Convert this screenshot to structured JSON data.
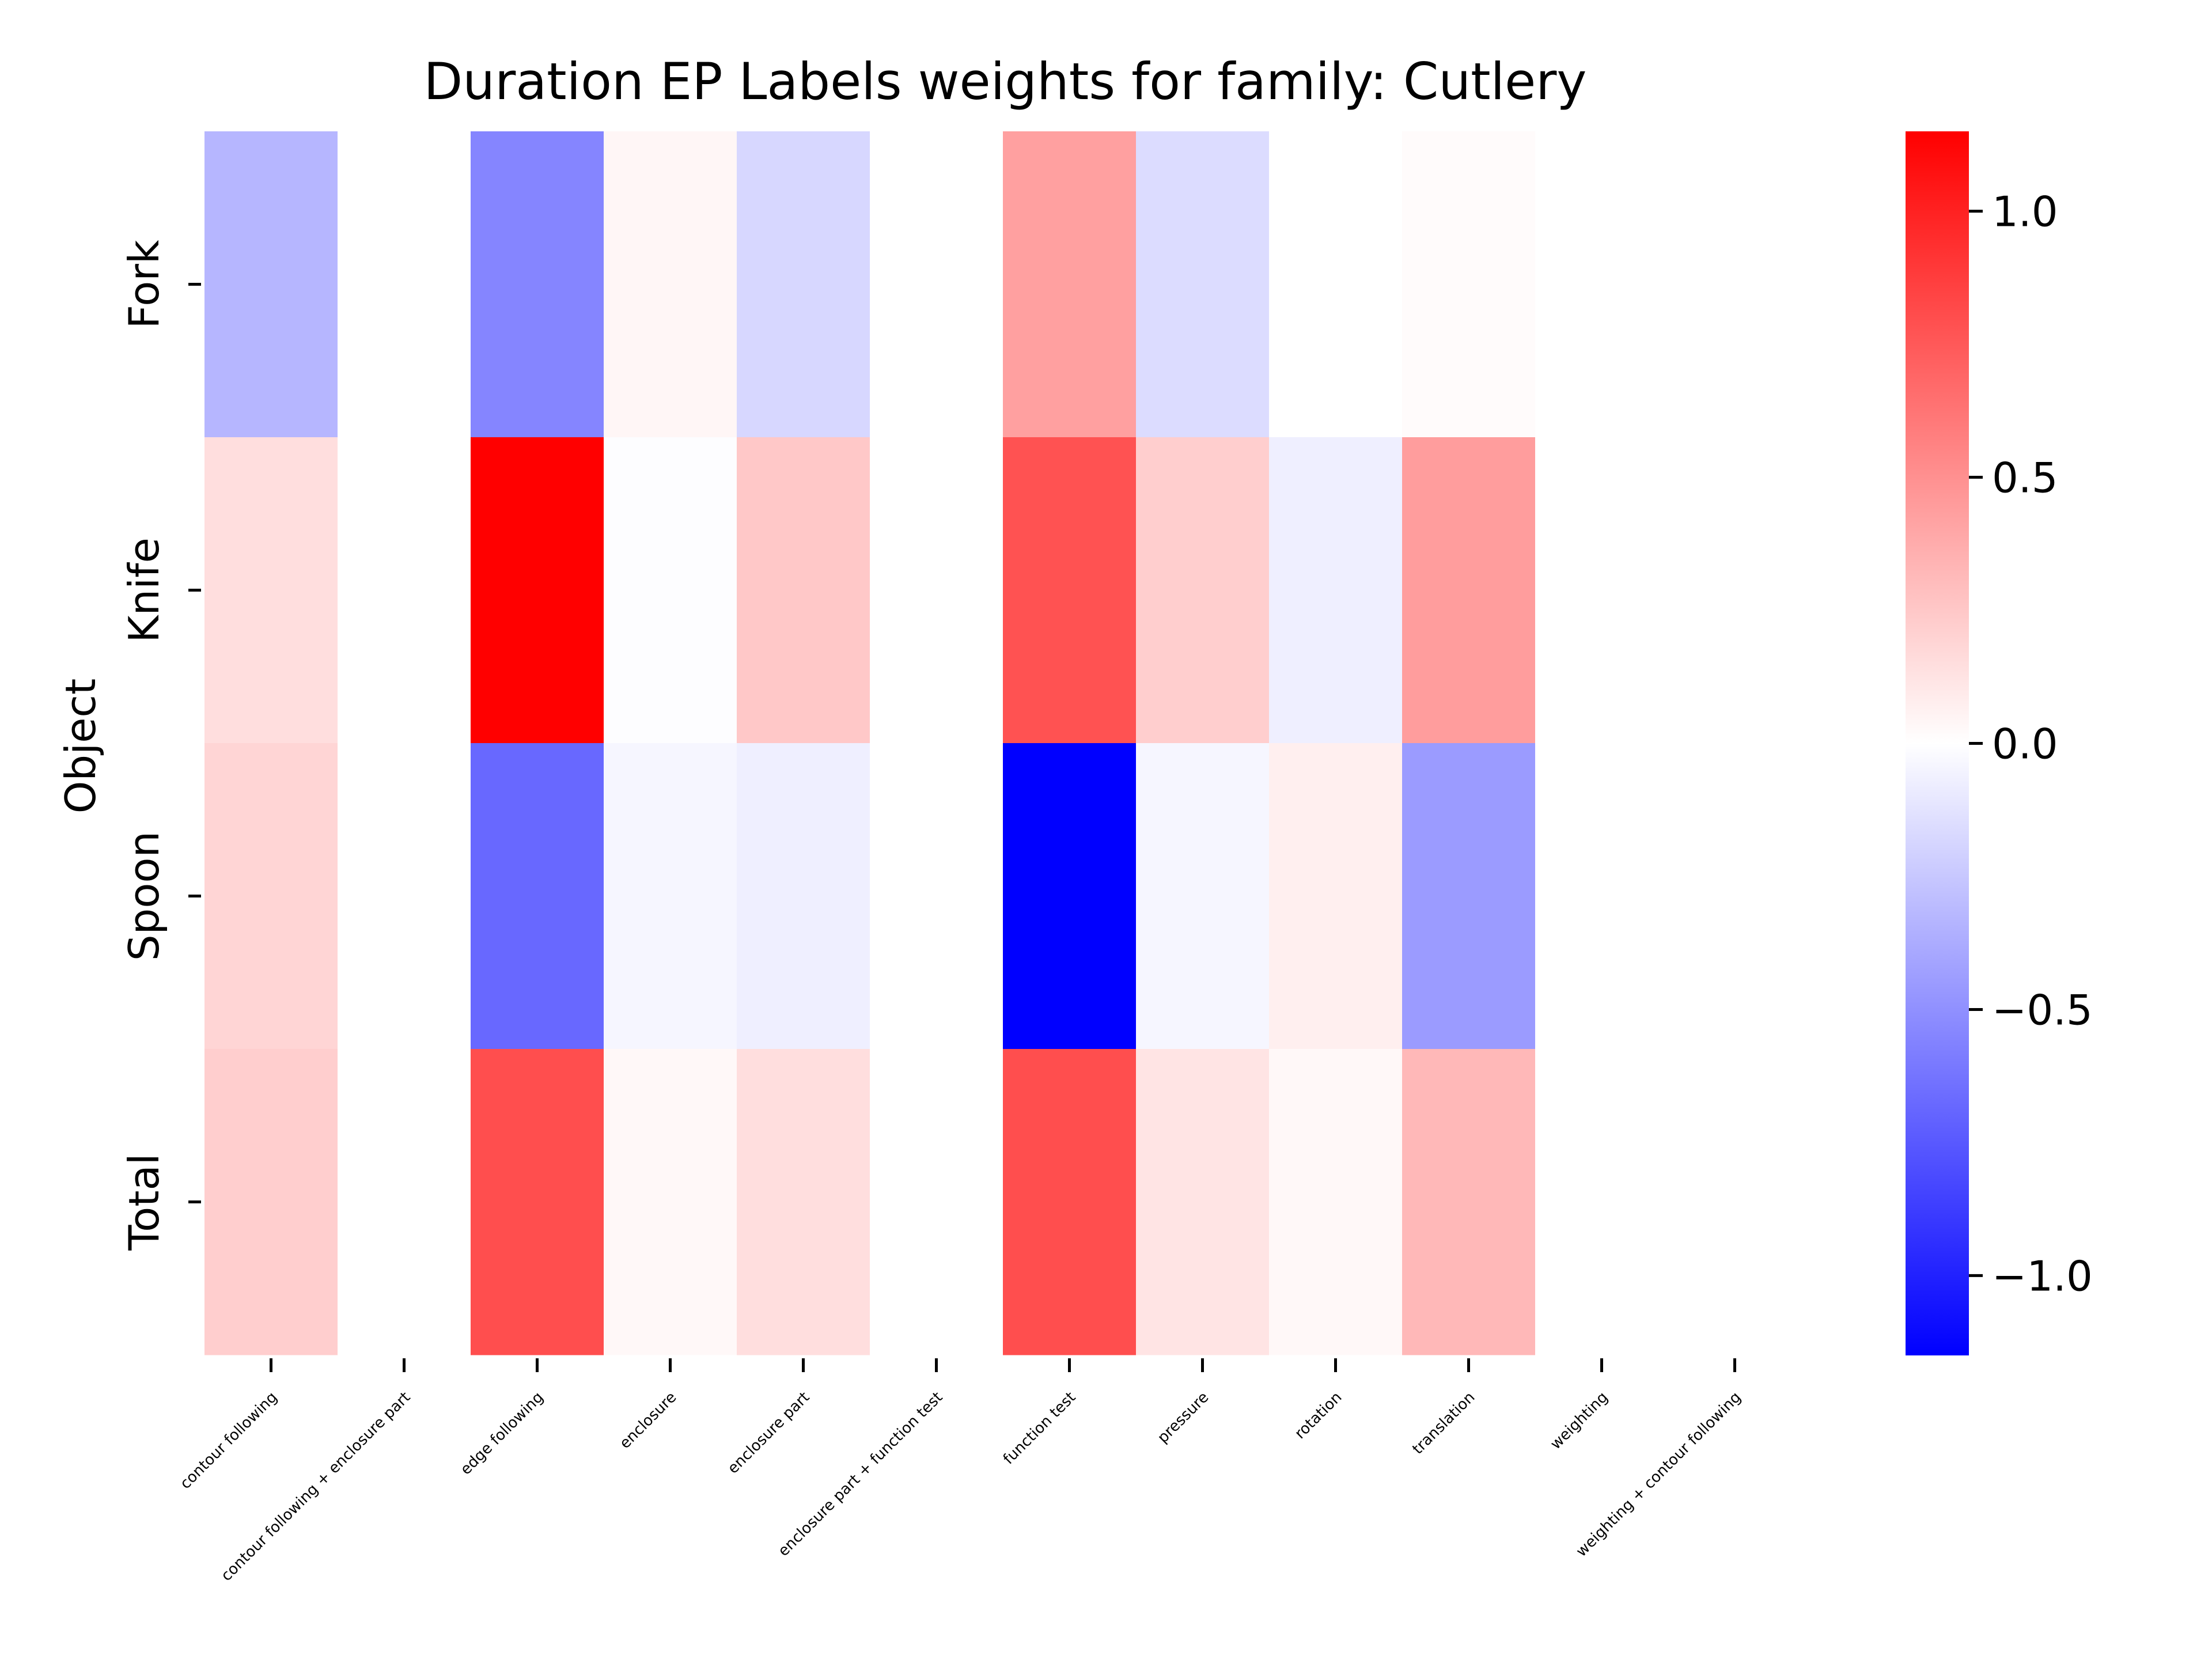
{
  "chart_data": {
    "type": "heatmap",
    "title": "Duration EP Labels weights for family: Cutlery",
    "ylabel": "Object",
    "xlabel": "",
    "rows": [
      "Fork",
      "Knife",
      "Spoon",
      "Total"
    ],
    "columns": [
      "contour following",
      "contour following + enclosure part",
      "edge following",
      "enclosure",
      "enclosure part",
      "enclosure part + function test",
      "function test",
      "pressure",
      "rotation",
      "translation",
      "weighting",
      "weighting + contour following"
    ],
    "values": [
      [
        -0.33,
        0.0,
        -0.55,
        0.04,
        -0.18,
        0.0,
        0.43,
        -0.16,
        0.0,
        0.02,
        0.0,
        0.0
      ],
      [
        0.15,
        0.0,
        1.15,
        -0.01,
        0.25,
        0.0,
        0.78,
        0.22,
        -0.07,
        0.44,
        0.0,
        0.0
      ],
      [
        0.19,
        0.0,
        -0.68,
        -0.04,
        -0.07,
        0.0,
        -1.15,
        -0.04,
        0.07,
        -0.45,
        0.0,
        0.0
      ],
      [
        0.22,
        0.0,
        0.8,
        0.03,
        0.15,
        0.0,
        0.8,
        0.12,
        0.03,
        0.32,
        0.0,
        0.0
      ]
    ],
    "colormap": "bwr",
    "vmin": -1.15,
    "vmax": 1.15,
    "colorbar_ticks": [
      "1.0",
      "0.5",
      "0.0",
      "−0.5",
      "−1.0"
    ],
    "colorbar_tick_values": [
      1.0,
      0.5,
      0.0,
      -0.5,
      -1.0
    ],
    "grid": false
  }
}
